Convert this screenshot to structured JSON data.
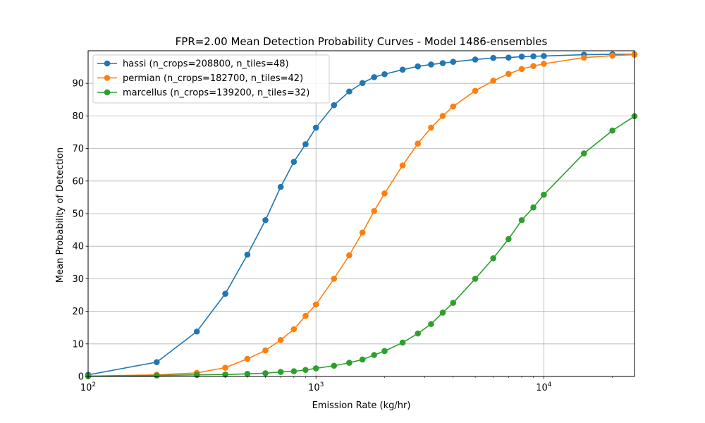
{
  "chart_data": {
    "type": "line",
    "title": "FPR=2.00 Mean Detection Probability Curves - Model 1486-ensembles",
    "xlabel": "Emission Rate (kg/hr)",
    "ylabel": "Mean Probability of Detection",
    "xscale": "log",
    "xlim": [
      100,
      25000
    ],
    "ylim": [
      0,
      100
    ],
    "grid": true,
    "legend_position": "top-left",
    "x_ticks": [
      {
        "value": 100,
        "base": "10",
        "exp": "2"
      },
      {
        "value": 1000,
        "base": "10",
        "exp": "3"
      },
      {
        "value": 10000,
        "base": "10",
        "exp": "4"
      }
    ],
    "y_ticks": [
      0,
      10,
      20,
      30,
      40,
      50,
      60,
      70,
      80,
      90
    ],
    "series": [
      {
        "name": "hassi (n_crops=208800, n_tiles=48)",
        "color": "#1f77b4",
        "x": [
          100,
          200,
          300,
          400,
          500,
          600,
          700,
          800,
          900,
          1000,
          1200,
          1400,
          1600,
          1800,
          2000,
          2400,
          2800,
          3200,
          3600,
          4000,
          5000,
          6000,
          7000,
          8000,
          9000,
          10000,
          15000,
          20000,
          25000
        ],
        "y": [
          0.5,
          4.4,
          13.8,
          25.4,
          37.4,
          48.0,
          58.2,
          65.9,
          71.3,
          76.4,
          83.3,
          87.5,
          90.1,
          91.9,
          92.8,
          94.2,
          95.2,
          95.8,
          96.2,
          96.6,
          97.3,
          97.8,
          97.9,
          98.2,
          98.3,
          98.4,
          98.8,
          98.9,
          98.9
        ]
      },
      {
        "name": "permian (n_crops=182700, n_tiles=42)",
        "color": "#ff7f0e",
        "x": [
          100,
          200,
          300,
          400,
          500,
          600,
          700,
          800,
          900,
          1000,
          1200,
          1400,
          1600,
          1800,
          2000,
          2400,
          2800,
          3200,
          3600,
          4000,
          5000,
          6000,
          7000,
          8000,
          9000,
          10000,
          15000,
          20000,
          25000
        ],
        "y": [
          0.1,
          0.5,
          1.1,
          2.7,
          5.4,
          8.0,
          11.2,
          14.5,
          18.6,
          22.1,
          30.0,
          37.2,
          44.2,
          50.8,
          56.2,
          64.8,
          71.5,
          76.4,
          80.0,
          82.9,
          87.7,
          90.8,
          92.9,
          94.4,
          95.3,
          96.0,
          97.9,
          98.5,
          98.8
        ]
      },
      {
        "name": "marcellus (n_crops=139200, n_tiles=32)",
        "color": "#2ca02c",
        "x": [
          100,
          200,
          300,
          400,
          500,
          600,
          700,
          800,
          900,
          1000,
          1200,
          1400,
          1600,
          1800,
          2000,
          2400,
          2800,
          3200,
          3600,
          4000,
          5000,
          6000,
          7000,
          8000,
          9000,
          10000,
          15000,
          20000,
          25000
        ],
        "y": [
          0.1,
          0.3,
          0.5,
          0.6,
          0.8,
          1.0,
          1.4,
          1.6,
          2.0,
          2.5,
          3.3,
          4.2,
          5.2,
          6.6,
          7.8,
          10.4,
          13.2,
          16.1,
          19.6,
          22.6,
          30.0,
          36.3,
          42.2,
          48.0,
          51.9,
          55.8,
          68.5,
          75.5,
          79.9
        ]
      }
    ]
  }
}
